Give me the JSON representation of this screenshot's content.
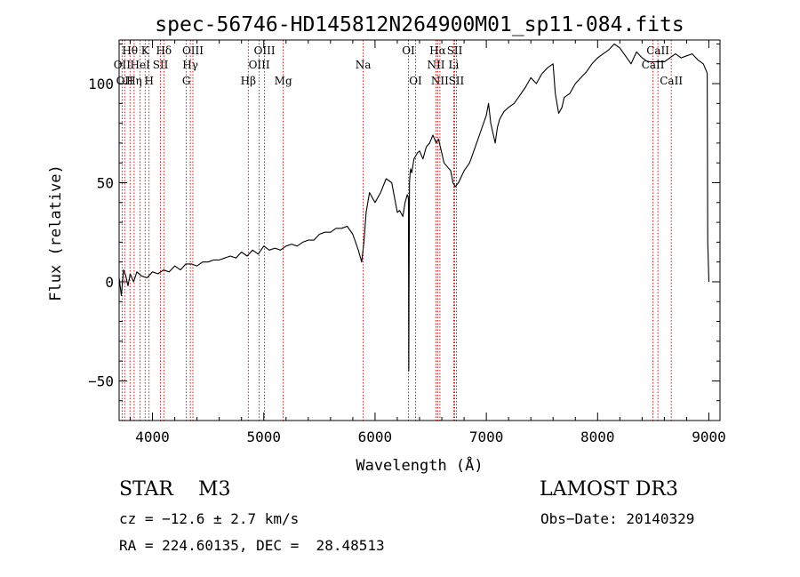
{
  "chart_data": {
    "type": "line",
    "title": "spec-56746-HD145812N264900M01_sp11-084.fits",
    "xlabel": "Wavelength (Å)",
    "ylabel": "Flux (relative)",
    "xlim": [
      3700,
      9100
    ],
    "ylim": [
      -70,
      122
    ],
    "x_ticks": [
      4000,
      5000,
      6000,
      7000,
      8000,
      9000
    ],
    "y_ticks": [
      -50,
      0,
      50,
      100
    ],
    "grid": false,
    "line_color": "#000000",
    "marker_color": "#cc0000",
    "series": [
      {
        "x": [
          3700,
          3720,
          3740,
          3760,
          3780,
          3800,
          3830,
          3860,
          3900,
          3950,
          4000,
          4050,
          4100,
          4150,
          4200,
          4250,
          4300,
          4350,
          4400,
          4450,
          4500,
          4550,
          4600,
          4650,
          4700,
          4750,
          4800,
          4850,
          4900,
          4950,
          5000,
          5050,
          5100,
          5150,
          5200,
          5250,
          5300,
          5350,
          5400,
          5450,
          5500,
          5550,
          5600,
          5650,
          5700,
          5750,
          5800,
          5850,
          5880,
          5900,
          5920,
          5950,
          6000,
          6050,
          6100,
          6150,
          6200,
          6220,
          6250,
          6270,
          6290,
          6300,
          6303,
          6305,
          6310,
          6315,
          6320,
          6330,
          6350,
          6380,
          6400,
          6430,
          6460,
          6490,
          6520,
          6550,
          6570,
          6600,
          6620,
          6650,
          6680,
          6700,
          6720,
          6750,
          6800,
          6850,
          6900,
          6950,
          7000,
          7020,
          7040,
          7060,
          7080,
          7100,
          7120,
          7140,
          7160,
          7200,
          7250,
          7300,
          7350,
          7400,
          7450,
          7500,
          7550,
          7600,
          7620,
          7650,
          7680,
          7700,
          7750,
          7800,
          7850,
          7900,
          7950,
          8000,
          8050,
          8100,
          8150,
          8200,
          8250,
          8300,
          8350,
          8400,
          8450,
          8500,
          8550,
          8600,
          8650,
          8700,
          8750,
          8800,
          8850,
          8900,
          8950,
          8980,
          8985,
          8990,
          9000
        ],
        "values": [
          2,
          -7,
          6,
          3,
          -2,
          4,
          0,
          5,
          3,
          2,
          5,
          4,
          6,
          5,
          8,
          6,
          9,
          9,
          8,
          10,
          10,
          11,
          11,
          12,
          13,
          12,
          15,
          13,
          16,
          14,
          18,
          16,
          17,
          16,
          18,
          19,
          18,
          20,
          21,
          21,
          24,
          25,
          25,
          27,
          27,
          28,
          24,
          16,
          10,
          20,
          35,
          45,
          40,
          45,
          52,
          50,
          35,
          36,
          33,
          40,
          44,
          42,
          -45,
          -8,
          50,
          55,
          57,
          55,
          62,
          65,
          66,
          62,
          68,
          70,
          74,
          70,
          72,
          65,
          60,
          58,
          56,
          50,
          48,
          50,
          56,
          60,
          68,
          76,
          84,
          90,
          80,
          75,
          70,
          78,
          82,
          84,
          86,
          88,
          90,
          94,
          98,
          103,
          100,
          105,
          108,
          110,
          95,
          85,
          88,
          93,
          95,
          100,
          103,
          106,
          110,
          113,
          115,
          117,
          120,
          118,
          114,
          110,
          116,
          113,
          111,
          111,
          111,
          111,
          113,
          115,
          113,
          114,
          115,
          112,
          110,
          106,
          105,
          20,
          0
        ]
      }
    ],
    "line_marks": [
      {
        "x": 3727,
        "label": "OII",
        "row": 2
      },
      {
        "x": 3750,
        "label": "OII",
        "row": 3
      },
      {
        "x": 3798,
        "label": "Hθ",
        "row": 1
      },
      {
        "x": 3835,
        "label": "Hη",
        "row": 3
      },
      {
        "x": 3889,
        "label": "HeI",
        "row": 2
      },
      {
        "x": 3934,
        "label": "K",
        "row": 1
      },
      {
        "x": 3969,
        "label": "H",
        "row": 3
      },
      {
        "x": 4072,
        "label": "SII",
        "row": 2
      },
      {
        "x": 4102,
        "label": "Hδ",
        "row": 1
      },
      {
        "x": 4304,
        "label": "G",
        "row": 3
      },
      {
        "x": 4340,
        "label": "Hγ",
        "row": 2
      },
      {
        "x": 4363,
        "label": "OIII",
        "row": 1
      },
      {
        "x": 4861,
        "label": "Hβ",
        "row": 3
      },
      {
        "x": 4959,
        "label": "OIII",
        "row": 2
      },
      {
        "x": 5007,
        "label": "OIII",
        "row": 1
      },
      {
        "x": 5175,
        "label": "Mg",
        "row": 3
      },
      {
        "x": 5893,
        "label": "Na",
        "row": 2
      },
      {
        "x": 6300,
        "label": "OI",
        "row": 1
      },
      {
        "x": 6364,
        "label": "OI",
        "row": 3
      },
      {
        "x": 6548,
        "label": "NII",
        "row": 2
      },
      {
        "x": 6563,
        "label": "Hα",
        "row": 1
      },
      {
        "x": 6583,
        "label": "NII",
        "row": 3
      },
      {
        "x": 6707,
        "label": "Li",
        "row": 2
      },
      {
        "x": 6716,
        "label": "SII",
        "row": 1
      },
      {
        "x": 6731,
        "label": "SII",
        "row": 3
      },
      {
        "x": 8498,
        "label": "CaII",
        "row": 2
      },
      {
        "x": 8542,
        "label": "CaII",
        "row": 1
      },
      {
        "x": 8662,
        "label": "CaII",
        "row": 3
      }
    ]
  },
  "info": {
    "object_class": "STAR    M3",
    "survey": "LAMOST DR3",
    "redshift": "cz = −12.6 ± 2.7 km/s",
    "obs_date": "Obs−Date: 20140329",
    "coords": "RA = 224.60135, DEC =  28.48513"
  }
}
